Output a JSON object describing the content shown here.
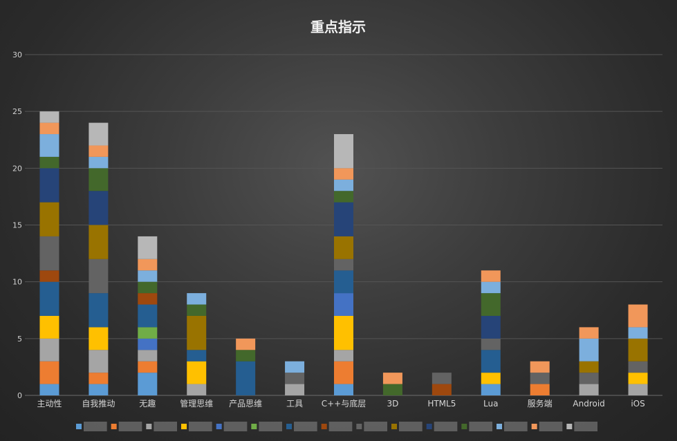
{
  "chart_data": {
    "type": "bar",
    "stacked": true,
    "title": "重点指示",
    "xlabel": "",
    "ylabel": "",
    "ylim": [
      0,
      30
    ],
    "yticks": [
      0,
      5,
      10,
      15,
      20,
      25,
      30
    ],
    "grid": true,
    "legend_position": "bottom",
    "legend_labels_obscured": true,
    "categories": [
      "主动性",
      "自我推动",
      "无趣",
      "管理思维",
      "产品思维",
      "工具",
      "C++与底层",
      "3D",
      "HTML5",
      "Lua",
      "服务端",
      "Android",
      "iOS"
    ],
    "series": [
      {
        "color": "#5b9bd5",
        "values": [
          1,
          1,
          2,
          0,
          0,
          0,
          1,
          0,
          0,
          1,
          0,
          0,
          0
        ]
      },
      {
        "color": "#ed7d31",
        "values": [
          2,
          1,
          1,
          0,
          0,
          0,
          2,
          0,
          0,
          0,
          1,
          0,
          0
        ]
      },
      {
        "color": "#a5a5a5",
        "values": [
          2,
          2,
          1,
          1,
          0,
          1,
          1,
          0,
          0,
          0,
          0,
          1,
          1
        ]
      },
      {
        "color": "#ffc000",
        "values": [
          2,
          2,
          0,
          2,
          0,
          0,
          3,
          0,
          0,
          1,
          0,
          0,
          1
        ]
      },
      {
        "color": "#4472c4",
        "values": [
          0,
          0,
          1,
          0,
          0,
          0,
          2,
          0,
          0,
          0,
          0,
          0,
          0
        ]
      },
      {
        "color": "#70ad47",
        "values": [
          0,
          0,
          1,
          0,
          0,
          0,
          0,
          0,
          0,
          0,
          0,
          0,
          0
        ]
      },
      {
        "color": "#255e91",
        "values": [
          3,
          3,
          2,
          1,
          3,
          0,
          2,
          0,
          0,
          2,
          0,
          0,
          0
        ]
      },
      {
        "color": "#9e480e",
        "values": [
          1,
          0,
          1,
          0,
          0,
          0,
          0,
          0,
          1,
          0,
          0,
          0,
          0
        ]
      },
      {
        "color": "#636363",
        "values": [
          3,
          3,
          0,
          0,
          0,
          1,
          1,
          0,
          1,
          1,
          1,
          1,
          1
        ]
      },
      {
        "color": "#997300",
        "values": [
          3,
          3,
          0,
          3,
          0,
          0,
          2,
          0,
          0,
          0,
          0,
          1,
          2
        ]
      },
      {
        "color": "#264478",
        "values": [
          3,
          3,
          0,
          0,
          0,
          0,
          3,
          0,
          0,
          2,
          0,
          0,
          0
        ]
      },
      {
        "color": "#43682b",
        "values": [
          1,
          2,
          1,
          1,
          1,
          0,
          1,
          1,
          0,
          2,
          0,
          0,
          0
        ]
      },
      {
        "color": "#7cafdd",
        "values": [
          2,
          1,
          1,
          1,
          0,
          1,
          1,
          0,
          0,
          1,
          0,
          2,
          1
        ]
      },
      {
        "color": "#f1975a",
        "values": [
          1,
          1,
          1,
          0,
          1,
          0,
          1,
          1,
          0,
          1,
          1,
          1,
          2
        ]
      },
      {
        "color": "#b7b7b7",
        "values": [
          1,
          2,
          2,
          0,
          0,
          0,
          3,
          0,
          0,
          0,
          0,
          0,
          0
        ]
      }
    ]
  }
}
